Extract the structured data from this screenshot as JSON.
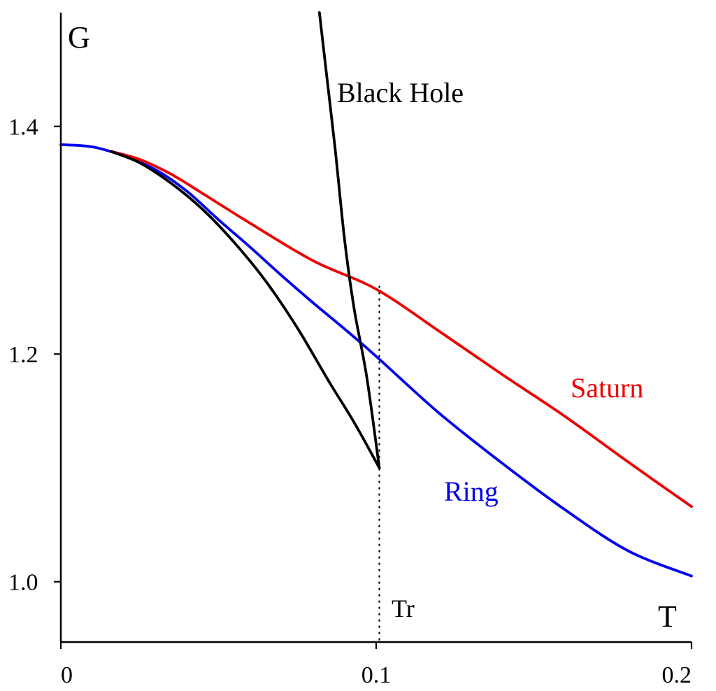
{
  "chart_data": {
    "type": "line",
    "title": "",
    "xlabel": "T",
    "ylabel": "G",
    "xlim": [
      0,
      0.2
    ],
    "ylim": [
      0.947,
      1.5
    ],
    "x_ticks": [
      {
        "value": 0,
        "label": "0"
      },
      {
        "value": 0.1,
        "label": "0.1"
      },
      {
        "value": 0.2,
        "label": "0.2"
      }
    ],
    "y_ticks": [
      {
        "value": 1.0,
        "label": "1.0"
      },
      {
        "value": 1.2,
        "label": "1.2"
      },
      {
        "value": 1.4,
        "label": "1.4"
      }
    ],
    "grid": false,
    "legend": "none",
    "colors": {
      "black_hole": "#000000",
      "black_hole_lower": "#000000",
      "ring": "#0000ee",
      "saturn": "#ee0000",
      "axes": "#000000"
    },
    "series": [
      {
        "key": "ring",
        "name": "Ring",
        "color": "#0000ee",
        "points": [
          [
            0,
            1.384
          ],
          [
            0.01,
            1.382
          ],
          [
            0.02,
            1.374
          ],
          [
            0.03,
            1.362
          ],
          [
            0.04,
            1.343
          ],
          [
            0.05,
            1.318
          ],
          [
            0.06,
            1.294
          ],
          [
            0.07,
            1.269
          ],
          [
            0.08,
            1.245
          ],
          [
            0.09,
            1.222
          ],
          [
            0.1,
            1.198
          ],
          [
            0.12,
            1.148
          ],
          [
            0.14,
            1.104
          ],
          [
            0.16,
            1.063
          ],
          [
            0.18,
            1.027
          ],
          [
            0.2,
            1.005
          ]
        ]
      },
      {
        "key": "saturn",
        "name": "Saturn",
        "color": "#ee0000",
        "points": [
          [
            0.016,
            1.378
          ],
          [
            0.025,
            1.371
          ],
          [
            0.035,
            1.358
          ],
          [
            0.045,
            1.341
          ],
          [
            0.06,
            1.315
          ],
          [
            0.08,
            1.282
          ],
          [
            0.1,
            1.257
          ],
          [
            0.12,
            1.22
          ],
          [
            0.14,
            1.182
          ],
          [
            0.16,
            1.145
          ],
          [
            0.18,
            1.105
          ],
          [
            0.2,
            1.066
          ]
        ]
      },
      {
        "key": "black_hole",
        "name": "Black Hole",
        "color": "#000000",
        "points": [
          [
            0.082,
            1.5
          ],
          [
            0.0845,
            1.44
          ],
          [
            0.087,
            1.38
          ],
          [
            0.09,
            1.3
          ],
          [
            0.093,
            1.24
          ],
          [
            0.097,
            1.18
          ],
          [
            0.101,
            1.1
          ]
        ]
      },
      {
        "key": "black_hole_lower",
        "name": "",
        "color": "#000000",
        "points": [
          [
            0.016,
            1.378
          ],
          [
            0.025,
            1.368
          ],
          [
            0.035,
            1.35
          ],
          [
            0.045,
            1.327
          ],
          [
            0.055,
            1.298
          ],
          [
            0.065,
            1.264
          ],
          [
            0.075,
            1.223
          ],
          [
            0.085,
            1.176
          ],
          [
            0.093,
            1.14
          ],
          [
            0.101,
            1.1
          ]
        ]
      }
    ],
    "annotations": {
      "black_hole_label": "Black Hole",
      "ring_label": "Ring",
      "saturn_label": "Saturn",
      "tr_label": "Tr",
      "tr_value": 0.101,
      "tr_line_top": 1.26,
      "tr_line_bottom": 0.947
    }
  }
}
